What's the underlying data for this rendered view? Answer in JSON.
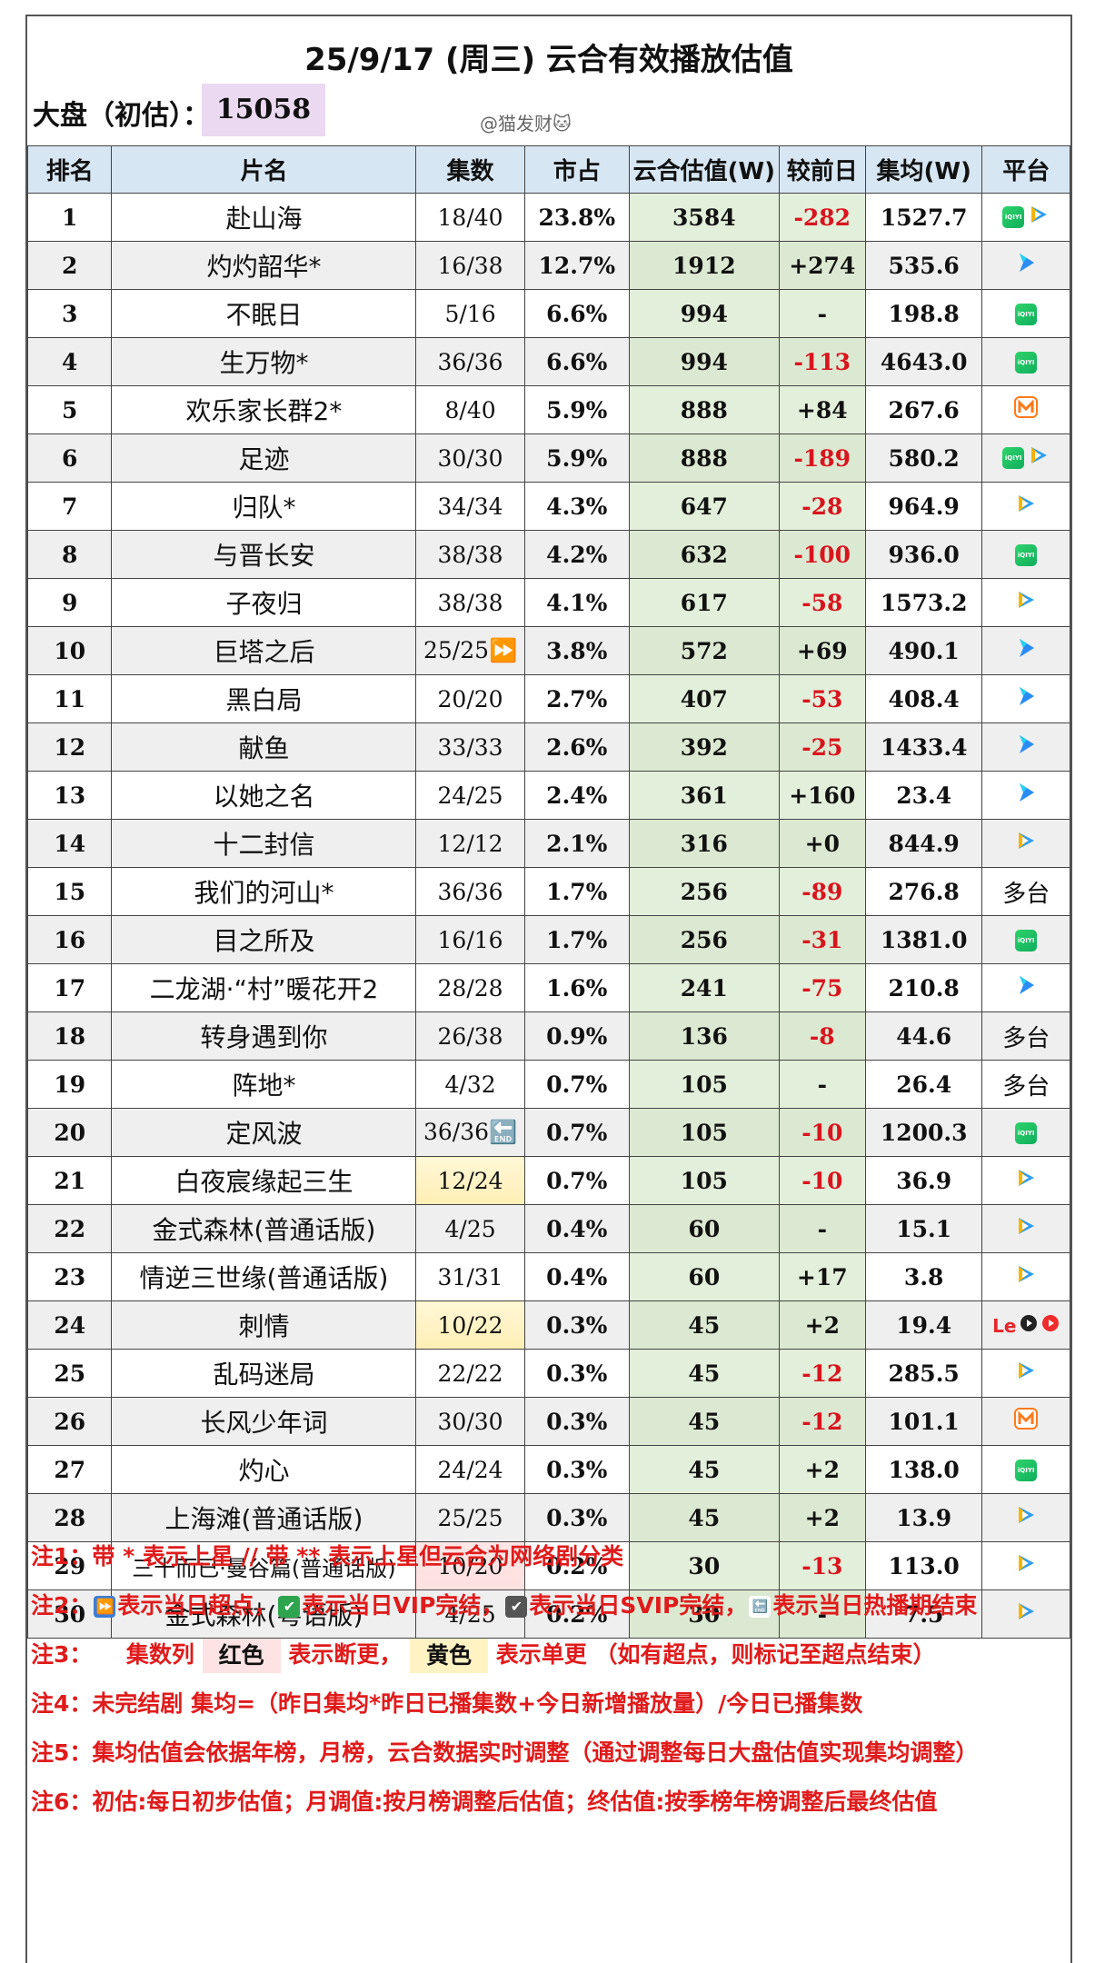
{
  "title": "25/9/17 (周三) 云合有效播放估值",
  "dapan_label": "大盘（初估）：",
  "dapan_value": "15058",
  "watermark": "@猫发财🐱",
  "headers": [
    "排名",
    "片名",
    "集数",
    "市占",
    "云合估值(W)",
    "较前日",
    "集均(W)",
    "平台"
  ],
  "rows": [
    {
      "rank": "1",
      "name": "赴山海",
      "ep": "18/40",
      "share": "23.8%",
      "est": "3584",
      "chg": "-282",
      "avg": "1527.7",
      "platforms": [
        "iqiyi",
        "tencent"
      ]
    },
    {
      "rank": "2",
      "name": "灼灼韶华*",
      "ep": "16/38",
      "share": "12.7%",
      "est": "1912",
      "chg": "+274",
      "avg": "535.6",
      "platforms": [
        "youku"
      ]
    },
    {
      "rank": "3",
      "name": "不眠日",
      "ep": "5/16",
      "share": "6.6%",
      "est": "994",
      "chg": "-",
      "avg": "198.8",
      "platforms": [
        "iqiyi"
      ]
    },
    {
      "rank": "4",
      "name": "生万物*",
      "ep": "36/36",
      "share": "6.6%",
      "est": "994",
      "chg": "-113",
      "avg": "4643.0",
      "platforms": [
        "iqiyi"
      ]
    },
    {
      "rank": "5",
      "name": "欢乐家长群2*",
      "ep": "8/40",
      "share": "5.9%",
      "est": "888",
      "chg": "+84",
      "avg": "267.6",
      "platforms": [
        "mango"
      ]
    },
    {
      "rank": "6",
      "name": "足迹",
      "ep": "30/30",
      "share": "5.9%",
      "est": "888",
      "chg": "-189",
      "avg": "580.2",
      "platforms": [
        "iqiyi",
        "tencent"
      ]
    },
    {
      "rank": "7",
      "name": "归队*",
      "ep": "34/34",
      "share": "4.3%",
      "est": "647",
      "chg": "-28",
      "avg": "964.9",
      "platforms": [
        "tencent"
      ]
    },
    {
      "rank": "8",
      "name": "与晋长安",
      "ep": "38/38",
      "share": "4.2%",
      "est": "632",
      "chg": "-100",
      "avg": "936.0",
      "platforms": [
        "iqiyi"
      ]
    },
    {
      "rank": "9",
      "name": "子夜归",
      "ep": "38/38",
      "share": "4.1%",
      "est": "617",
      "chg": "-58",
      "avg": "1573.2",
      "platforms": [
        "tencent"
      ]
    },
    {
      "rank": "10",
      "name": "巨塔之后",
      "ep": "25/25⏩",
      "share": "3.8%",
      "est": "572",
      "chg": "+69",
      "avg": "490.1",
      "platforms": [
        "youku"
      ]
    },
    {
      "rank": "11",
      "name": "黑白局",
      "ep": "20/20",
      "share": "2.7%",
      "est": "407",
      "chg": "-53",
      "avg": "408.4",
      "platforms": [
        "youku"
      ]
    },
    {
      "rank": "12",
      "name": "献鱼",
      "ep": "33/33",
      "share": "2.6%",
      "est": "392",
      "chg": "-25",
      "avg": "1433.4",
      "platforms": [
        "youku"
      ]
    },
    {
      "rank": "13",
      "name": "以她之名",
      "ep": "24/25",
      "share": "2.4%",
      "est": "361",
      "chg": "+160",
      "avg": "23.4",
      "platforms": [
        "youku"
      ]
    },
    {
      "rank": "14",
      "name": "十二封信",
      "ep": "12/12",
      "share": "2.1%",
      "est": "316",
      "chg": "+0",
      "avg": "844.9",
      "platforms": [
        "tencent"
      ]
    },
    {
      "rank": "15",
      "name": "我们的河山*",
      "ep": "36/36",
      "share": "1.7%",
      "est": "256",
      "chg": "-89",
      "avg": "276.8",
      "platforms": [
        "多台"
      ]
    },
    {
      "rank": "16",
      "name": "目之所及",
      "ep": "16/16",
      "share": "1.7%",
      "est": "256",
      "chg": "-31",
      "avg": "1381.0",
      "platforms": [
        "iqiyi"
      ]
    },
    {
      "rank": "17",
      "name": "二龙湖·“村”暖花开2",
      "ep": "28/28",
      "share": "1.6%",
      "est": "241",
      "chg": "-75",
      "avg": "210.8",
      "platforms": [
        "youku"
      ]
    },
    {
      "rank": "18",
      "name": "转身遇到你",
      "ep": "26/38",
      "share": "0.9%",
      "est": "136",
      "chg": "-8",
      "avg": "44.6",
      "platforms": [
        "多台"
      ]
    },
    {
      "rank": "19",
      "name": "阵地*",
      "ep": "4/32",
      "share": "0.7%",
      "est": "105",
      "chg": "-",
      "avg": "26.4",
      "platforms": [
        "多台"
      ]
    },
    {
      "rank": "20",
      "name": "定风波",
      "ep": "36/36🔚",
      "share": "0.7%",
      "est": "105",
      "chg": "-10",
      "avg": "1200.3",
      "platforms": [
        "iqiyi"
      ]
    },
    {
      "rank": "21",
      "name": "白夜宸缘起三生",
      "ep": "12/24",
      "share": "0.7%",
      "est": "105",
      "chg": "-10",
      "avg": "36.9",
      "platforms": [
        "tencent"
      ],
      "ep_mark": "yellow"
    },
    {
      "rank": "22",
      "name": "金式森林(普通话版)",
      "ep": "4/25",
      "share": "0.4%",
      "est": "60",
      "chg": "-",
      "avg": "15.1",
      "platforms": [
        "tencent"
      ]
    },
    {
      "rank": "23",
      "name": "情逆三世缘(普通话版)",
      "ep": "31/31",
      "share": "0.4%",
      "est": "60",
      "chg": "+17",
      "avg": "3.8",
      "platforms": [
        "tencent"
      ]
    },
    {
      "rank": "24",
      "name": "刺情",
      "ep": "10/22",
      "share": "0.3%",
      "est": "45",
      "chg": "+2",
      "avg": "19.4",
      "platforms": [
        "le",
        "video1",
        "video2"
      ],
      "ep_mark": "yellow"
    },
    {
      "rank": "25",
      "name": "乱码迷局",
      "ep": "22/22",
      "share": "0.3%",
      "est": "45",
      "chg": "-12",
      "avg": "285.5",
      "platforms": [
        "tencent"
      ]
    },
    {
      "rank": "26",
      "name": "长风少年词",
      "ep": "30/30",
      "share": "0.3%",
      "est": "45",
      "chg": "-12",
      "avg": "101.1",
      "platforms": [
        "mango"
      ]
    },
    {
      "rank": "27",
      "name": "灼心",
      "ep": "24/24",
      "share": "0.3%",
      "est": "45",
      "chg": "+2",
      "avg": "138.0",
      "platforms": [
        "iqiyi"
      ]
    },
    {
      "rank": "28",
      "name": "上海滩(普通话版)",
      "ep": "25/25",
      "share": "0.3%",
      "est": "45",
      "chg": "+2",
      "avg": "13.9",
      "platforms": [
        "tencent"
      ]
    },
    {
      "rank": "29",
      "name": "三十而已·曼谷篇(普通话版)",
      "ep": "10/20",
      "share": "0.2%",
      "est": "30",
      "chg": "-13",
      "avg": "113.0",
      "platforms": [
        "tencent"
      ],
      "ep_mark": "red"
    },
    {
      "rank": "30",
      "name": "金式森林(粤语版)",
      "ep": "4/25",
      "share": "0.2%",
      "est": "30",
      "chg": "-",
      "avg": "7.5",
      "platforms": [
        "tencent"
      ]
    }
  ],
  "notes": {
    "n1": "注1：带 * 表示上星 // 带 ** 表示上星但云合为网络剧分类",
    "n2_prefix": "注2：",
    "n2_a": "表示当日超点，",
    "n2_b": "表示当日VIP完结，",
    "n2_c": "表示当日SVIP完结，",
    "n2_d": "表示当日热播期结束",
    "n3_prefix": "注3：",
    "n3_col": "集数列",
    "n3_red": "红色",
    "n3_mid": "表示断更，",
    "n3_yellow": "黄色",
    "n3_end": "表示单更 （如有超点，则标记至超点结束）",
    "n4": "注4：未完结剧 集均=（昨日集均*昨日已播集数+今日新增播放量）/今日已播集数",
    "n5": "注5：集均估值会依据年榜，月榜，云合数据实时调整（通过调整每日大盘估值实现集均调整）",
    "n6": "注6：初估:每日初步估值；月调值:按月榜调整后估值；终估值:按季榜年榜调整后最终估值"
  },
  "colors": {
    "header_bg": "#d7e6f3",
    "estimate_bg": "#e2efda",
    "negative": "#d9141e",
    "note_red": "#e01b1b",
    "dapan_bg": "#ead9f0"
  }
}
